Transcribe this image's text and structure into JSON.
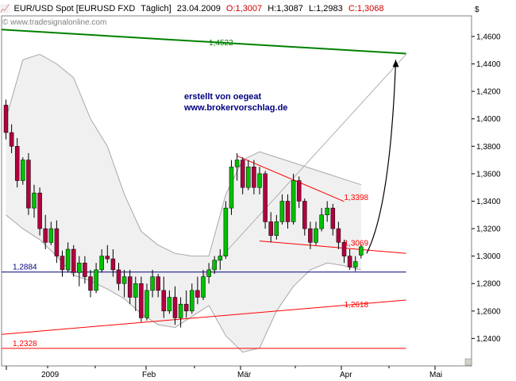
{
  "chart_data": {
    "type": "candlestick",
    "title_parts": {
      "symbol": "EUR/USD Spot [EURUSD FXD",
      "period": "Täglich]",
      "date": "23.04.2009",
      "open": "O:1,3007",
      "high": "H:1,3087",
      "low": "L:1,2983",
      "close": "C:1,3068"
    },
    "watermark": "© www.tradesignalonline.com",
    "currency_symbol": "$",
    "credits": [
      "erstellt von oegeat",
      "www.brokervorschlag.de"
    ],
    "ylim": [
      1.22,
      1.475
    ],
    "y_ticks": [
      "1,4600",
      "1,4400",
      "1,4200",
      "1,4000",
      "1,3800",
      "1,3600",
      "1,3400",
      "1,3200",
      "1,3000",
      "1,2800",
      "1,2600",
      "1,2400"
    ],
    "x_labels": [
      "2009",
      "Feb",
      "Mär",
      "Apr",
      "Mai"
    ],
    "ohlc": [
      [
        1.41,
        1.414,
        1.385,
        1.39
      ],
      [
        1.39,
        1.396,
        1.375,
        1.38
      ],
      [
        1.38,
        1.386,
        1.35,
        1.355
      ],
      [
        1.355,
        1.372,
        1.352,
        1.37
      ],
      [
        1.37,
        1.375,
        1.33,
        1.335
      ],
      [
        1.335,
        1.352,
        1.328,
        1.346
      ],
      [
        1.346,
        1.35,
        1.315,
        1.32
      ],
      [
        1.32,
        1.33,
        1.305,
        1.31
      ],
      [
        1.31,
        1.325,
        1.308,
        1.32
      ],
      [
        1.32,
        1.326,
        1.295,
        1.3
      ],
      [
        1.3,
        1.304,
        1.285,
        1.29
      ],
      [
        1.29,
        1.31,
        1.288,
        1.305
      ],
      [
        1.305,
        1.308,
        1.285,
        1.288
      ],
      [
        1.288,
        1.3,
        1.278,
        1.295
      ],
      [
        1.295,
        1.3,
        1.28,
        1.285
      ],
      [
        1.285,
        1.29,
        1.27,
        1.275
      ],
      [
        1.275,
        1.295,
        1.273,
        1.29
      ],
      [
        1.29,
        1.305,
        1.288,
        1.3
      ],
      [
        1.3,
        1.308,
        1.295,
        1.298
      ],
      [
        1.298,
        1.305,
        1.285,
        1.29
      ],
      [
        1.29,
        1.295,
        1.275,
        1.28
      ],
      [
        1.28,
        1.29,
        1.27,
        1.285
      ],
      [
        1.285,
        1.29,
        1.265,
        1.27
      ],
      [
        1.27,
        1.285,
        1.26,
        1.28
      ],
      [
        1.28,
        1.285,
        1.252,
        1.255
      ],
      [
        1.255,
        1.28,
        1.253,
        1.275
      ],
      [
        1.275,
        1.29,
        1.27,
        1.285
      ],
      [
        1.285,
        1.287,
        1.27,
        1.275
      ],
      [
        1.275,
        1.285,
        1.255,
        1.26
      ],
      [
        1.26,
        1.275,
        1.258,
        1.27
      ],
      [
        1.27,
        1.278,
        1.25,
        1.255
      ],
      [
        1.255,
        1.27,
        1.248,
        1.265
      ],
      [
        1.265,
        1.275,
        1.255,
        1.26
      ],
      [
        1.26,
        1.28,
        1.258,
        1.275
      ],
      [
        1.275,
        1.285,
        1.265,
        1.27
      ],
      [
        1.27,
        1.29,
        1.268,
        1.285
      ],
      [
        1.285,
        1.295,
        1.28,
        1.29
      ],
      [
        1.29,
        1.3,
        1.287,
        1.297
      ],
      [
        1.297,
        1.305,
        1.29,
        1.3
      ],
      [
        1.3,
        1.34,
        1.298,
        1.335
      ],
      [
        1.335,
        1.37,
        1.33,
        1.365
      ],
      [
        1.365,
        1.375,
        1.355,
        1.37
      ],
      [
        1.37,
        1.372,
        1.345,
        1.35
      ],
      [
        1.35,
        1.37,
        1.348,
        1.365
      ],
      [
        1.365,
        1.37,
        1.345,
        1.35
      ],
      [
        1.35,
        1.365,
        1.345,
        1.36
      ],
      [
        1.36,
        1.362,
        1.32,
        1.325
      ],
      [
        1.325,
        1.332,
        1.31,
        1.315
      ],
      [
        1.315,
        1.33,
        1.312,
        1.325
      ],
      [
        1.325,
        1.345,
        1.323,
        1.34
      ],
      [
        1.34,
        1.345,
        1.32,
        1.325
      ],
      [
        1.325,
        1.36,
        1.323,
        1.355
      ],
      [
        1.355,
        1.358,
        1.335,
        1.34
      ],
      [
        1.34,
        1.342,
        1.315,
        1.32
      ],
      [
        1.32,
        1.325,
        1.305,
        1.31
      ],
      [
        1.31,
        1.325,
        1.308,
        1.32
      ],
      [
        1.32,
        1.335,
        1.318,
        1.33
      ],
      [
        1.33,
        1.34,
        1.325,
        1.335
      ],
      [
        1.335,
        1.338,
        1.315,
        1.32
      ],
      [
        1.32,
        1.325,
        1.305,
        1.31
      ],
      [
        1.31,
        1.312,
        1.295,
        1.3
      ],
      [
        1.3,
        1.305,
        1.29,
        1.292
      ],
      [
        1.292,
        1.3,
        1.289,
        1.296
      ],
      [
        1.3007,
        1.3087,
        1.2983,
        1.3068
      ]
    ],
    "bollinger": {
      "upper": [
        [
          0,
          1.4
        ],
        [
          3,
          1.443
        ],
        [
          6,
          1.447
        ],
        [
          9,
          1.44
        ],
        [
          12,
          1.43
        ],
        [
          15,
          1.4
        ],
        [
          18,
          1.38
        ],
        [
          21,
          1.345
        ],
        [
          24,
          1.318
        ],
        [
          27,
          1.308
        ],
        [
          30,
          1.302
        ],
        [
          33,
          1.3
        ],
        [
          36,
          1.3
        ],
        [
          39,
          1.345
        ],
        [
          42,
          1.37
        ],
        [
          45,
          1.376
        ],
        [
          48,
          1.372
        ],
        [
          51,
          1.368
        ],
        [
          54,
          1.364
        ],
        [
          57,
          1.36
        ],
        [
          60,
          1.356
        ],
        [
          63,
          1.352
        ]
      ],
      "lower": [
        [
          0,
          1.33
        ],
        [
          3,
          1.32
        ],
        [
          6,
          1.312
        ],
        [
          9,
          1.3
        ],
        [
          12,
          1.286
        ],
        [
          15,
          1.282
        ],
        [
          18,
          1.276
        ],
        [
          21,
          1.269
        ],
        [
          24,
          1.258
        ],
        [
          27,
          1.25
        ],
        [
          30,
          1.248
        ],
        [
          33,
          1.256
        ],
        [
          36,
          1.264
        ],
        [
          39,
          1.242
        ],
        [
          42,
          1.23
        ],
        [
          45,
          1.233
        ],
        [
          48,
          1.26
        ],
        [
          51,
          1.278
        ],
        [
          54,
          1.29
        ],
        [
          57,
          1.295
        ],
        [
          60,
          1.293
        ],
        [
          63,
          1.29
        ]
      ]
    },
    "lines": [
      {
        "name": "long-green-trend",
        "color": "#008000",
        "label": "1,4522",
        "points": [
          [
            -4,
            1.465
          ],
          [
            71,
            1.4475
          ]
        ],
        "label_at": [
          36,
          1.452
        ]
      },
      {
        "name": "upper-channel",
        "color": "#ff0000",
        "label": "1,3398",
        "points": [
          [
            41,
            1.373
          ],
          [
            60,
            1.3398
          ]
        ],
        "label_at": [
          60,
          1.339
        ]
      },
      {
        "name": "lower-channel",
        "color": "#ff0000",
        "label": "1,3069",
        "points": [
          [
            45,
            1.311
          ],
          [
            71,
            1.302
          ]
        ],
        "label_at": [
          60,
          1.306
        ]
      },
      {
        "name": "support-trend",
        "color": "#ff0000",
        "label": "1,2618",
        "points": [
          [
            -4,
            1.243
          ],
          [
            71,
            1.268
          ]
        ],
        "label_at": [
          60,
          1.261
        ]
      },
      {
        "name": "support-1-2884",
        "color": "#000080",
        "label": "1,2884",
        "points": [
          [
            -4,
            1.2884
          ],
          [
            71,
            1.2884
          ]
        ],
        "label_at": [
          -2,
          1.2884
        ]
      },
      {
        "name": "support-1-2328",
        "color": "#ff0000",
        "label": "1,2328",
        "points": [
          [
            -4,
            1.2328
          ],
          [
            71,
            1.2328
          ]
        ],
        "label_at": [
          -2,
          1.2328
        ]
      },
      {
        "name": "grey-rising-line",
        "color": "#b0b0b0",
        "label": "",
        "points": [
          [
            35,
            1.285
          ],
          [
            71,
            1.447
          ]
        ]
      }
    ],
    "arrow": {
      "from": [
        64,
        1.302
      ],
      "to": [
        70,
        1.443
      ]
    }
  }
}
